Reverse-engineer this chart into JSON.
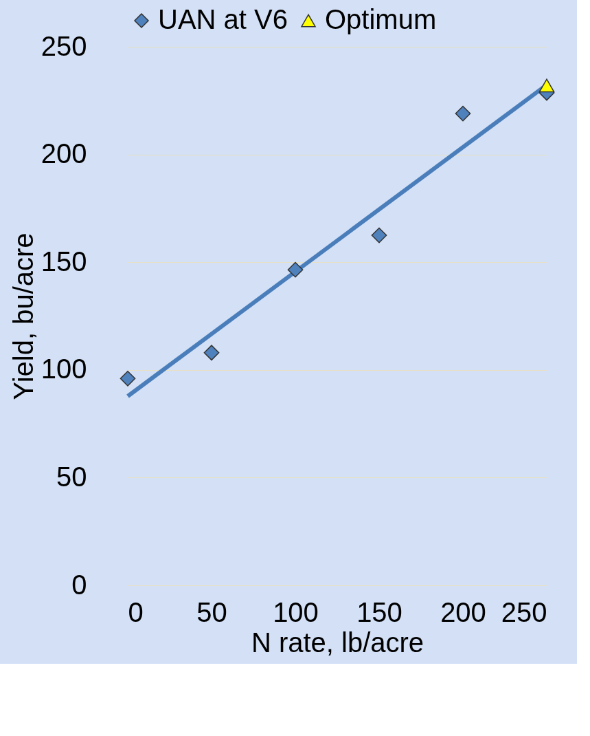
{
  "chart_data": {
    "type": "scatter",
    "xlabel": "N rate, lb/acre",
    "ylabel": "Yield, bu/acre",
    "xlim": [
      0,
      250
    ],
    "ylim": [
      0,
      250
    ],
    "xticks": [
      0,
      50,
      100,
      150,
      200,
      250
    ],
    "yticks": [
      0,
      50,
      100,
      150,
      200,
      250
    ],
    "grid": "y",
    "legend": "top",
    "series": [
      {
        "name": "UAN at V6",
        "marker": "diamond",
        "color": "#4f81bd",
        "x": [
          0,
          50,
          100,
          150,
          200,
          250
        ],
        "values": [
          96,
          108,
          146.5,
          162.5,
          219,
          228.6
        ]
      },
      {
        "name": "Optimum",
        "marker": "triangle",
        "color": "#ffff00",
        "x": [
          250
        ],
        "values": [
          232
        ]
      },
      {
        "type": "line",
        "color": "#4a7ebb",
        "x": [
          0,
          250
        ],
        "values": [
          87.8,
          232.3
        ]
      }
    ]
  }
}
